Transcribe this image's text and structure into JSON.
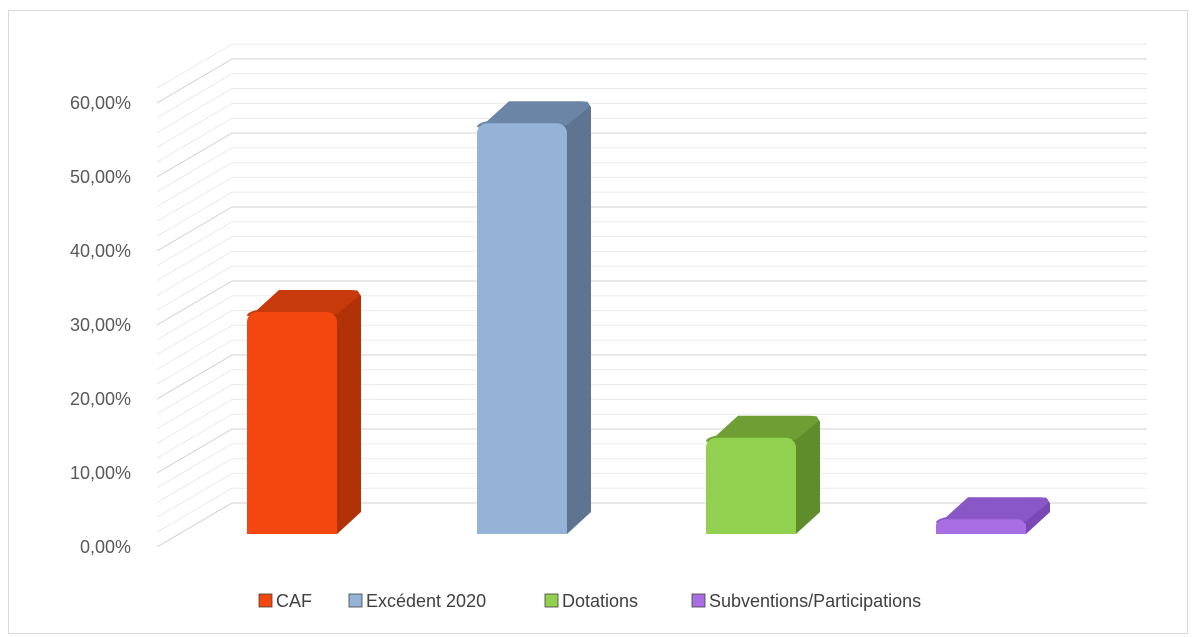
{
  "chart_data": {
    "type": "bar",
    "style": "3d-column",
    "categories": [
      "CAF",
      "Excédent 2020",
      "Dotations",
      "Subventions/Participations"
    ],
    "values": [
      0.3,
      0.555,
      0.13,
      0.02
    ],
    "ylim": [
      0,
      0.6
    ],
    "yticks": [
      0,
      0.1,
      0.2,
      0.3,
      0.4,
      0.5,
      0.6
    ],
    "ytick_labels": [
      "0,00%",
      "10,00%",
      "20,00%",
      "30,00%",
      "40,00%",
      "50,00%",
      "60,00%"
    ],
    "grid": true,
    "legend_position": "bottom",
    "colors": [
      "#f4460f",
      "#95b3d7",
      "#92d050",
      "#a96ee3"
    ],
    "side_colors": [
      "#b23208",
      "#5e7592",
      "#5f8d2c",
      "#7a47b5"
    ],
    "top_colors": [
      "#c73a0b",
      "#6b85a6",
      "#6e9e34",
      "#8a57c6"
    ],
    "legend": [
      {
        "label": "CAF",
        "color": "#f4460f"
      },
      {
        "label": "Excédent 2020",
        "color": "#95b3d7"
      },
      {
        "label": "Dotations",
        "color": "#92d050"
      },
      {
        "label": "Subventions/Participations",
        "color": "#a96ee3"
      }
    ]
  }
}
